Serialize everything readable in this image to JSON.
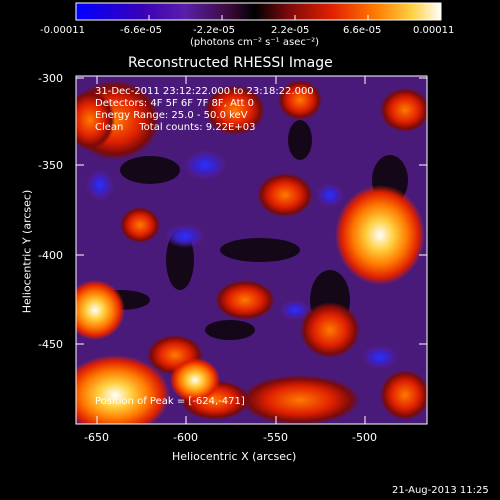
{
  "colorbar": {
    "tick_labels": [
      "-0.00011",
      "-6.6e-05",
      "-2.2e-05",
      "2.2e-05",
      "6.6e-05",
      "0.00011"
    ],
    "unit_label": "(photons cm⁻² s⁻¹ asec⁻²)",
    "gradient": [
      "#0000ff",
      "#3a00b8",
      "#5a1fa8",
      "#3a0a3a",
      "#000000",
      "#7a0a0a",
      "#e02000",
      "#ff7a00",
      "#ffd040",
      "#ffffff"
    ]
  },
  "image": {
    "title": "Reconstructed RHESSI Image",
    "info_lines": [
      "31-Dec-2011 23:12:22.000 to 23:18:22.000",
      "Detectors: 4F 5F 6F 7F 8F, Att 0",
      "Energy Range: 25.0 - 50.0 keV",
      "Clean     Total counts: 9.22E+03"
    ],
    "peak_text": "Position of Peak = [-624,-471]",
    "x_axis_label": "Heliocentric X (arcsec)",
    "y_axis_label": "Heliocentric Y (arcsec)",
    "x_ticks": [
      "-650",
      "-600",
      "-550",
      "-500"
    ],
    "y_ticks": [
      "-300",
      "-350",
      "-400",
      "-450"
    ],
    "timestamp": "21-Aug-2013 11:25"
  }
}
